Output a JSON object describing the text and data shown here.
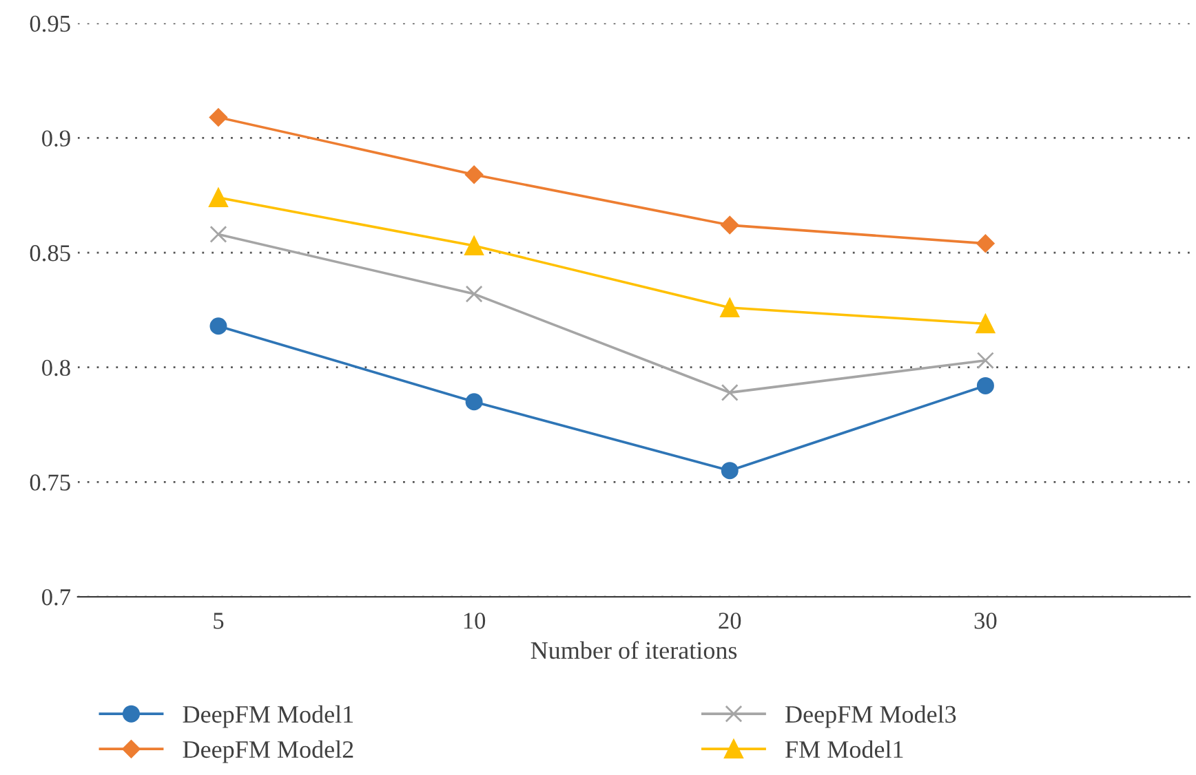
{
  "chart_data": {
    "type": "line",
    "xlabel": "Number of iterations",
    "categories": [
      "5",
      "10",
      "20",
      "30"
    ],
    "ylim": [
      0.7,
      0.95
    ],
    "yticks": [
      0.7,
      0.75,
      0.8,
      0.85,
      0.9,
      0.95
    ],
    "grid": "y",
    "legend": "bottom",
    "series": [
      {
        "name": "DeepFM Model1",
        "color": "#2e75b6",
        "marker": "circle",
        "values": [
          0.818,
          0.785,
          0.755,
          0.792
        ]
      },
      {
        "name": "DeepFM Model2",
        "color": "#ed7d31",
        "marker": "diamond",
        "values": [
          0.909,
          0.884,
          0.862,
          0.854
        ]
      },
      {
        "name": "DeepFM Model3",
        "color": "#a5a5a5",
        "marker": "cross",
        "values": [
          0.858,
          0.832,
          0.789,
          0.803
        ]
      },
      {
        "name": "FM Model1",
        "color": "#ffc000",
        "marker": "triangle",
        "values": [
          0.874,
          0.853,
          0.826,
          0.819
        ]
      }
    ]
  }
}
